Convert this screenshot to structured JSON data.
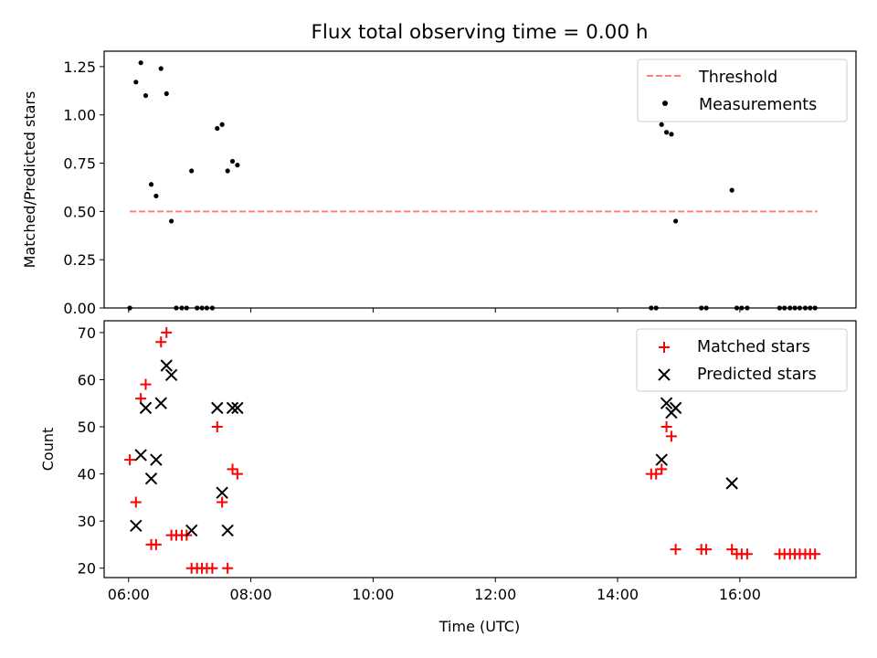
{
  "figure": {
    "title": "Flux total observing time = 0.00 h",
    "xlabel": "Time (UTC)"
  },
  "colors": {
    "threshold": "#ff7f7f",
    "measurement": "#000000",
    "matched": "#ff0000",
    "predicted": "#000000"
  },
  "chart_data": [
    {
      "type": "scatter",
      "ylabel": "Matched/Predicted stars",
      "x_unit": "hours UTC",
      "xlim": [
        5.6,
        17.9
      ],
      "ylim": [
        0,
        1.33
      ],
      "yticks": [
        0.0,
        0.25,
        0.5,
        0.75,
        1.0,
        1.25
      ],
      "ytick_labels": [
        "0.00",
        "0.25",
        "0.50",
        "0.75",
        "1.00",
        "1.25"
      ],
      "xticks": [
        6,
        8,
        10,
        12,
        14,
        16
      ],
      "grid": false,
      "legend": {
        "position": "top-right",
        "entries": [
          {
            "label": "Threshold",
            "kind": "dashed-line"
          },
          {
            "label": "Measurements",
            "kind": "dot"
          }
        ]
      },
      "threshold": {
        "name": "Threshold",
        "value": 0.5,
        "x_range": [
          6.02,
          17.27
        ]
      },
      "series": [
        {
          "name": "Measurements",
          "points": [
            [
              6.02,
              0.0
            ],
            [
              6.12,
              1.17
            ],
            [
              6.2,
              1.27
            ],
            [
              6.28,
              1.1
            ],
            [
              6.37,
              0.64
            ],
            [
              6.45,
              0.58
            ],
            [
              6.53,
              1.24
            ],
            [
              6.62,
              1.11
            ],
            [
              6.7,
              0.45
            ],
            [
              6.78,
              0.0
            ],
            [
              6.87,
              0.0
            ],
            [
              6.95,
              0.0
            ],
            [
              7.03,
              0.71
            ],
            [
              7.12,
              0.0
            ],
            [
              7.2,
              0.0
            ],
            [
              7.28,
              0.0
            ],
            [
              7.37,
              0.0
            ],
            [
              7.45,
              0.93
            ],
            [
              7.53,
              0.95
            ],
            [
              7.62,
              0.71
            ],
            [
              7.7,
              0.76
            ],
            [
              7.78,
              0.74
            ],
            [
              14.55,
              0.0
            ],
            [
              14.63,
              0.0
            ],
            [
              14.72,
              0.95
            ],
            [
              14.8,
              0.91
            ],
            [
              14.88,
              0.9
            ],
            [
              14.95,
              0.45
            ],
            [
              15.37,
              0.0
            ],
            [
              15.45,
              0.0
            ],
            [
              15.87,
              0.61
            ],
            [
              15.95,
              0.0
            ],
            [
              16.03,
              0.0
            ],
            [
              16.12,
              0.0
            ],
            [
              16.65,
              0.0
            ],
            [
              16.73,
              0.0
            ],
            [
              16.82,
              0.0
            ],
            [
              16.9,
              0.0
            ],
            [
              16.98,
              0.0
            ],
            [
              17.07,
              0.0
            ],
            [
              17.15,
              0.0
            ],
            [
              17.23,
              0.0
            ]
          ]
        }
      ]
    },
    {
      "type": "scatter",
      "ylabel": "Count",
      "x_unit": "hours UTC",
      "xlim": [
        5.6,
        17.9
      ],
      "ylim": [
        18,
        72.5
      ],
      "yticks": [
        20,
        30,
        40,
        50,
        60,
        70
      ],
      "ytick_labels": [
        "20",
        "30",
        "40",
        "50",
        "60",
        "70"
      ],
      "xticks": [
        6,
        8,
        10,
        12,
        14,
        16
      ],
      "xtick_labels": [
        "06:00",
        "08:00",
        "10:00",
        "12:00",
        "14:00",
        "16:00"
      ],
      "grid": false,
      "legend": {
        "position": "top-right",
        "entries": [
          {
            "label": "Matched stars",
            "kind": "plus"
          },
          {
            "label": "Predicted stars",
            "kind": "cross"
          }
        ]
      },
      "series": [
        {
          "name": "Matched stars",
          "points": [
            [
              6.02,
              43
            ],
            [
              6.12,
              34
            ],
            [
              6.2,
              56
            ],
            [
              6.28,
              59
            ],
            [
              6.37,
              25
            ],
            [
              6.45,
              25
            ],
            [
              6.53,
              68
            ],
            [
              6.62,
              70
            ],
            [
              6.7,
              27
            ],
            [
              6.78,
              27
            ],
            [
              6.87,
              27
            ],
            [
              6.95,
              27
            ],
            [
              7.03,
              20
            ],
            [
              7.12,
              20
            ],
            [
              7.2,
              20
            ],
            [
              7.28,
              20
            ],
            [
              7.37,
              20
            ],
            [
              7.45,
              50
            ],
            [
              7.53,
              34
            ],
            [
              7.62,
              20
            ],
            [
              7.7,
              41
            ],
            [
              7.78,
              40
            ],
            [
              14.55,
              40
            ],
            [
              14.63,
              40
            ],
            [
              14.72,
              41
            ],
            [
              14.8,
              50
            ],
            [
              14.88,
              48
            ],
            [
              14.95,
              24
            ],
            [
              15.37,
              24
            ],
            [
              15.45,
              24
            ],
            [
              15.87,
              24
            ],
            [
              15.95,
              23
            ],
            [
              16.03,
              23
            ],
            [
              16.12,
              23
            ],
            [
              16.65,
              23
            ],
            [
              16.73,
              23
            ],
            [
              16.82,
              23
            ],
            [
              16.9,
              23
            ],
            [
              16.98,
              23
            ],
            [
              17.07,
              23
            ],
            [
              17.15,
              23
            ],
            [
              17.23,
              23
            ]
          ]
        },
        {
          "name": "Predicted stars",
          "points": [
            [
              6.12,
              29
            ],
            [
              6.2,
              44
            ],
            [
              6.28,
              54
            ],
            [
              6.37,
              39
            ],
            [
              6.45,
              43
            ],
            [
              6.53,
              55
            ],
            [
              6.62,
              63
            ],
            [
              6.7,
              61
            ],
            [
              7.03,
              28
            ],
            [
              7.45,
              54
            ],
            [
              7.53,
              36
            ],
            [
              7.62,
              28
            ],
            [
              7.7,
              54
            ],
            [
              7.78,
              54
            ],
            [
              14.72,
              43
            ],
            [
              14.8,
              55
            ],
            [
              14.88,
              53
            ],
            [
              14.95,
              54
            ],
            [
              15.87,
              38
            ]
          ]
        }
      ]
    }
  ]
}
